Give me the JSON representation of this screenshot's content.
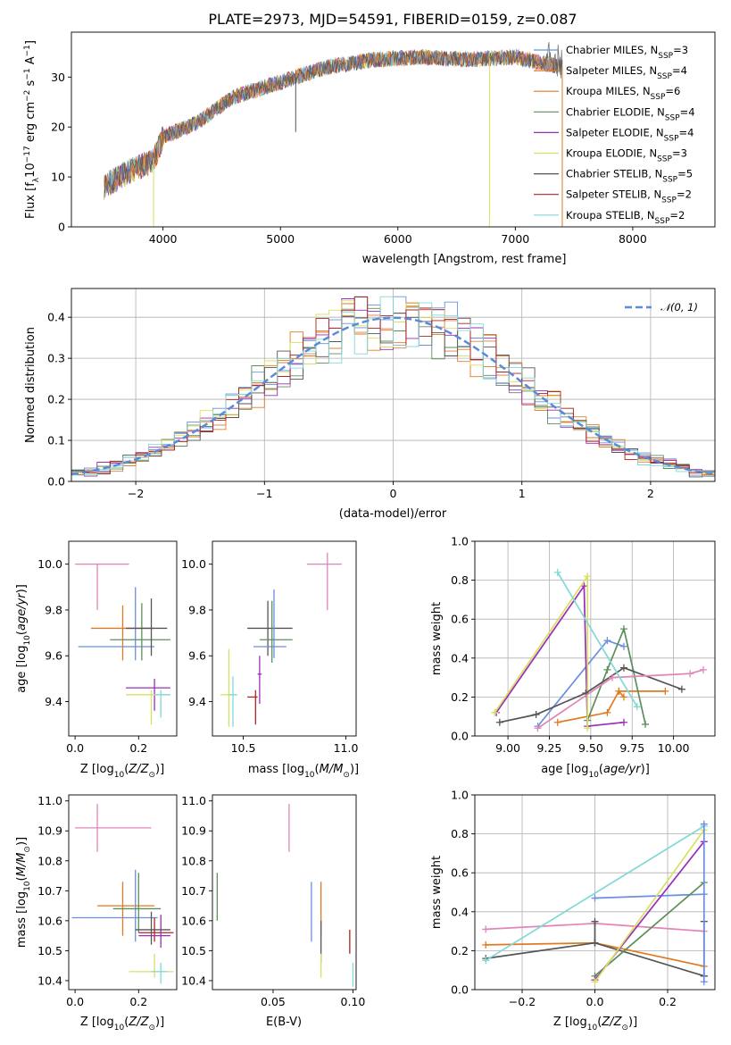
{
  "page": {
    "title": "PLATE=2973, MJD=54591, FIBERID=0159, z=0.087"
  },
  "colors": {
    "models": [
      "#6a8fdf",
      "#df7f3c",
      "#e07a20",
      "#5c8f5c",
      "#9b2db8",
      "#d8e060",
      "#555555",
      "#b22222",
      "#80d8d8"
    ],
    "fit": {
      "chabrier_miles": "#6a8fdf",
      "salpeter_miles": "#e07a20",
      "kroupa_miles": "#e07a20",
      "chabrier_elodie": "#5c8f5c",
      "salpeter_elodie": "#9b2db8",
      "kroupa_elodie": "#d8e060",
      "chabrier_stelib": "#555555",
      "salpeter_stelib": "#b22222",
      "kroupa_stelib": "#80d8d8",
      "pink": "#e085b8",
      "normal": "#5a8ad8"
    }
  },
  "chart_data": [
    {
      "id": "spectrum",
      "type": "line",
      "xlabel": "wavelength [Angstrom, rest frame]",
      "ylabel": "Flux [f_λ10^-17 erg cm^-2 s^-1 A^-1]",
      "ylabel_parts": {
        "main": "Flux [f",
        "sub1": "λ",
        "mid": "10",
        "sup1": "−17",
        "rest": " erg cm",
        "sup2": "−2",
        "rest2": " s",
        "sup3": "−1",
        "rest3": " A",
        "sup4": "−1",
        "end": "]"
      },
      "xlim": [
        3220,
        8700
      ],
      "ylim": [
        0,
        39
      ],
      "xticks": [
        4000,
        5000,
        6000,
        7000,
        8000
      ],
      "yticks": [
        0,
        10,
        20,
        30
      ],
      "legend_position": "upper right",
      "legend": [
        {
          "label": "Chabrier MILES, N",
          "sub": "SSP",
          "suffix": "=3",
          "color": "#6a8fdf"
        },
        {
          "label": "Salpeter MILES, N",
          "sub": "SSP",
          "suffix": "=4",
          "color": "#e07a20"
        },
        {
          "label": "Kroupa MILES, N",
          "sub": "SSP",
          "suffix": "=6",
          "color": "#e07a20"
        },
        {
          "label": "Chabrier ELODIE, N",
          "sub": "SSP",
          "suffix": "=4",
          "color": "#5c8f5c"
        },
        {
          "label": "Salpeter ELODIE, N",
          "sub": "SSP",
          "suffix": "=4",
          "color": "#9b2db8"
        },
        {
          "label": "Kroupa ELODIE, N",
          "sub": "SSP",
          "suffix": "=3",
          "color": "#d8e060"
        },
        {
          "label": "Chabrier STELIB, N",
          "sub": "SSP",
          "suffix": "=5",
          "color": "#555555"
        },
        {
          "label": "Salpeter STELIB, N",
          "sub": "SSP",
          "suffix": "=2",
          "color": "#b22222"
        },
        {
          "label": "Kroupa STELIB, N",
          "sub": "SSP",
          "suffix": "=2",
          "color": "#80d8d8"
        }
      ],
      "continuum": [
        [
          3500,
          8
        ],
        [
          3700,
          11
        ],
        [
          3900,
          13
        ],
        [
          3950,
          15
        ],
        [
          4000,
          18
        ],
        [
          4300,
          21
        ],
        [
          4600,
          26
        ],
        [
          5000,
          29
        ],
        [
          5400,
          32
        ],
        [
          5800,
          33.5
        ],
        [
          6200,
          34
        ],
        [
          6600,
          33.5
        ],
        [
          7000,
          34
        ],
        [
          7200,
          33
        ],
        [
          7400,
          32
        ]
      ],
      "spikes": [
        {
          "x": 3920,
          "y": 0,
          "color": "#d8e060"
        },
        {
          "x": 5130,
          "y": 19,
          "color": "#555555"
        },
        {
          "x": 6780,
          "y": 0,
          "color": "#d8e060"
        },
        {
          "x": 7400,
          "y": 0,
          "color": "#e07a20"
        }
      ]
    },
    {
      "id": "residuals",
      "type": "step",
      "xlabel": "(data-model)/error",
      "ylabel": "Normed distribution",
      "xlim": [
        -2.5,
        2.5
      ],
      "ylim": [
        0,
        0.47
      ],
      "xticks": [
        -2,
        -1,
        0,
        1,
        2
      ],
      "yticks": [
        0.0,
        0.1,
        0.2,
        0.3,
        0.4
      ],
      "legend": "𝒩(0, 1)",
      "legend_position": "upper right",
      "normal": {
        "mu": 0,
        "sigma": 1
      },
      "bin_width": 0.1
    },
    {
      "id": "age_vs_Z",
      "type": "errorbar",
      "xlabel": "Z [log10(Z/Z⊙)]",
      "ylabel": "age [log10(age/yr)]",
      "xlim": [
        -0.02,
        0.32
      ],
      "ylim": [
        9.25,
        10.1
      ],
      "xticks": [
        0.0,
        0.2
      ],
      "yticks": [
        9.4,
        9.6,
        9.8,
        10.0
      ],
      "points": [
        {
          "x": 0.07,
          "y": 10.0,
          "xerr": [
            0.07,
            0.1
          ],
          "yerr": [
            0.2,
            0.0
          ],
          "color": "#e085b8"
        },
        {
          "x": 0.15,
          "y": 9.72,
          "xerr": [
            0.1,
            0.1
          ],
          "yerr": [
            0.14,
            0.1
          ],
          "color": "#e07a20"
        },
        {
          "x": 0.19,
          "y": 9.64,
          "xerr": [
            0.18,
            0.06
          ],
          "yerr": [
            0.06,
            0.26
          ],
          "color": "#6a8fdf"
        },
        {
          "x": 0.21,
          "y": 9.67,
          "xerr": [
            0.1,
            0.09
          ],
          "yerr": [
            0.09,
            0.16
          ],
          "color": "#5c8f5c"
        },
        {
          "x": 0.24,
          "y": 9.72,
          "xerr": [
            0.08,
            0.05
          ],
          "yerr": [
            0.12,
            0.13
          ],
          "color": "#555555"
        },
        {
          "x": 0.25,
          "y": 9.46,
          "xerr": [
            0.09,
            0.05
          ],
          "yerr": [
            0.1,
            0.04
          ],
          "color": "#9b2db8"
        },
        {
          "x": 0.24,
          "y": 9.43,
          "xerr": [
            0.08,
            0.06
          ],
          "yerr": [
            0.13,
            0.02
          ],
          "color": "#d8e060"
        },
        {
          "x": 0.27,
          "y": 9.43,
          "xerr": [
            0.02,
            0.03
          ],
          "yerr": [
            0.1,
            0.02
          ],
          "color": "#80d8d8"
        }
      ]
    },
    {
      "id": "age_vs_mass",
      "type": "errorbar",
      "xlabel": "mass [log10(M/M⊙)]",
      "ylabel": "",
      "xlim": [
        10.35,
        11.05
      ],
      "ylim": [
        9.25,
        10.1
      ],
      "xticks": [
        10.5,
        11.0
      ],
      "yticks": [
        9.4,
        9.6,
        9.8,
        10.0
      ],
      "points": [
        {
          "x": 10.91,
          "y": 10.0,
          "xerr": [
            0.1,
            0.07
          ],
          "yerr": [
            0.2,
            0.05
          ],
          "color": "#e085b8"
        },
        {
          "x": 10.62,
          "y": 9.72,
          "xerr": [
            0.1,
            0.12
          ],
          "yerr": [
            0.12,
            0.12
          ],
          "color": "#555555"
        },
        {
          "x": 10.65,
          "y": 9.64,
          "xerr": [
            0.1,
            0.06
          ],
          "yerr": [
            0.05,
            0.25
          ],
          "color": "#6a8fdf"
        },
        {
          "x": 10.64,
          "y": 9.67,
          "xerr": [
            0.06,
            0.1
          ],
          "yerr": [
            0.1,
            0.17
          ],
          "color": "#5c8f5c"
        },
        {
          "x": 10.58,
          "y": 9.52,
          "xerr": [
            0.01,
            0.01
          ],
          "yerr": [
            0.13,
            0.08
          ],
          "color": "#9b2db8"
        },
        {
          "x": 10.43,
          "y": 9.43,
          "xerr": [
            0.04,
            0.04
          ],
          "yerr": [
            0.14,
            0.2
          ],
          "color": "#d8e060"
        },
        {
          "x": 10.56,
          "y": 9.42,
          "xerr": [
            0.04,
            0.01
          ],
          "yerr": [
            0.12,
            0.03
          ],
          "color": "#b22222"
        },
        {
          "x": 10.45,
          "y": 9.43,
          "xerr": [
            0.02,
            0.02
          ],
          "yerr": [
            0.14,
            0.08
          ],
          "color": "#80d8d8"
        }
      ]
    },
    {
      "id": "mass_weight_vs_age",
      "type": "line",
      "xlabel": "age [log10(age/yr)]",
      "ylabel": "mass weight",
      "xlim": [
        8.8,
        10.25
      ],
      "ylim": [
        0.0,
        1.0
      ],
      "xticks": [
        9.0,
        9.25,
        9.5,
        9.75,
        10.0
      ],
      "yticks": [
        0.0,
        0.2,
        0.4,
        0.6,
        0.8,
        1.0
      ],
      "series": [
        {
          "color": "#6a8fdf",
          "x": [
            9.18,
            9.6,
            9.7
          ],
          "y": [
            0.05,
            0.49,
            0.46
          ]
        },
        {
          "color": "#e07a20",
          "x": [
            9.3,
            9.6,
            9.67,
            9.95
          ],
          "y": [
            0.07,
            0.12,
            0.23,
            0.23
          ]
        },
        {
          "color": "#e07a20",
          "x": [
            9.67,
            9.7
          ],
          "y": [
            0.23,
            0.2
          ]
        },
        {
          "color": "#5c8f5c",
          "x": [
            9.48,
            9.6,
            9.7,
            9.83
          ],
          "y": [
            0.08,
            0.34,
            0.55,
            0.06
          ]
        },
        {
          "color": "#9b2db8",
          "x": [
            8.93,
            9.46,
            9.48,
            9.7
          ],
          "y": [
            0.12,
            0.77,
            0.05,
            0.07
          ]
        },
        {
          "color": "#d8e060",
          "x": [
            8.92,
            9.48,
            9.48
          ],
          "y": [
            0.12,
            0.82,
            0.04
          ]
        },
        {
          "color": "#555555",
          "x": [
            8.95,
            9.17,
            9.47,
            9.7,
            10.05
          ],
          "y": [
            0.07,
            0.11,
            0.22,
            0.35,
            0.24
          ]
        },
        {
          "color": "#e085b8",
          "x": [
            9.18,
            9.63,
            10.1,
            10.18
          ],
          "y": [
            0.04,
            0.3,
            0.32,
            0.34
          ]
        },
        {
          "color": "#80d8d8",
          "x": [
            9.3,
            9.78
          ],
          "y": [
            0.84,
            0.15
          ]
        }
      ]
    },
    {
      "id": "mass_vs_Z",
      "type": "errorbar",
      "xlabel": "Z [log10(Z/Z⊙)]",
      "ylabel": "mass [log10(M/M⊙)]",
      "xlim": [
        -0.02,
        0.32
      ],
      "ylim": [
        10.37,
        11.02
      ],
      "xticks": [
        0.0,
        0.2
      ],
      "yticks": [
        10.4,
        10.5,
        10.6,
        10.7,
        10.8,
        10.9,
        11.0
      ],
      "points": [
        {
          "x": 0.07,
          "y": 10.91,
          "xerr": [
            0.07,
            0.17
          ],
          "yerr": [
            0.08,
            0.08
          ],
          "color": "#e085b8"
        },
        {
          "x": 0.15,
          "y": 10.65,
          "xerr": [
            0.08,
            0.1
          ],
          "yerr": [
            0.1,
            0.08
          ],
          "color": "#e07a20"
        },
        {
          "x": 0.19,
          "y": 10.61,
          "xerr": [
            0.2,
            0.07
          ],
          "yerr": [
            0.08,
            0.16
          ],
          "color": "#6a8fdf"
        },
        {
          "x": 0.2,
          "y": 10.64,
          "xerr": [
            0.08,
            0.07
          ],
          "yerr": [
            0.08,
            0.12
          ],
          "color": "#5c8f5c"
        },
        {
          "x": 0.25,
          "y": 10.56,
          "xerr": [
            0.05,
            0.06
          ],
          "yerr": [
            0.03,
            0.05
          ],
          "color": "#b22222"
        },
        {
          "x": 0.27,
          "y": 10.55,
          "xerr": [
            0.07,
            0.03
          ],
          "yerr": [
            0.04,
            0.07
          ],
          "color": "#9b2db8"
        },
        {
          "x": 0.24,
          "y": 10.57,
          "xerr": [
            0.05,
            0.06
          ],
          "yerr": [
            0.05,
            0.06
          ],
          "color": "#555555"
        },
        {
          "x": 0.25,
          "y": 10.43,
          "xerr": [
            0.08,
            0.06
          ],
          "yerr": [
            0.02,
            0.06
          ],
          "color": "#d8e060"
        },
        {
          "x": 0.27,
          "y": 10.43,
          "xerr": [
            0.03,
            0.02
          ],
          "yerr": [
            0.04,
            0.03
          ],
          "color": "#80d8d8"
        }
      ]
    },
    {
      "id": "mass_vs_ebv",
      "type": "errorbar",
      "xlabel": "E(B-V)",
      "ylabel": "",
      "xlim": [
        0.012,
        0.102
      ],
      "ylim": [
        10.37,
        11.02
      ],
      "xticks": [
        0.05,
        0.1
      ],
      "yticks": [
        10.4,
        10.5,
        10.6,
        10.7,
        10.8,
        10.9,
        11.0
      ],
      "points": [
        {
          "x": 0.015,
          "y": 10.69,
          "xerr": [
            0,
            0
          ],
          "yerr": [
            0.09,
            0.07
          ],
          "color": "#5c8f5c"
        },
        {
          "x": 0.06,
          "y": 10.91,
          "xerr": [
            0,
            0
          ],
          "yerr": [
            0.08,
            0.08
          ],
          "color": "#e085b8"
        },
        {
          "x": 0.074,
          "y": 10.65,
          "xerr": [
            0,
            0
          ],
          "yerr": [
            0.12,
            0.08
          ],
          "color": "#6a8fdf"
        },
        {
          "x": 0.08,
          "y": 10.64,
          "xerr": [
            0,
            0
          ],
          "yerr": [
            0.09,
            0.09
          ],
          "color": "#e07a20"
        },
        {
          "x": 0.08,
          "y": 10.53,
          "xerr": [
            0,
            0
          ],
          "yerr": [
            0.07,
            0.07
          ],
          "color": "#555555"
        },
        {
          "x": 0.08,
          "y": 10.45,
          "xerr": [
            0,
            0
          ],
          "yerr": [
            0.04,
            0.04
          ],
          "color": "#d8e060"
        },
        {
          "x": 0.098,
          "y": 10.53,
          "xerr": [
            0,
            0
          ],
          "yerr": [
            0.04,
            0.04
          ],
          "color": "#b22222"
        },
        {
          "x": 0.1,
          "y": 10.42,
          "xerr": [
            0,
            0
          ],
          "yerr": [
            0.04,
            0.04
          ],
          "color": "#80d8d8"
        }
      ]
    },
    {
      "id": "mass_weight_vs_Z",
      "type": "line",
      "xlabel": "Z [log10(Z/Z⊙)]",
      "ylabel": "mass weight",
      "xlim": [
        -0.33,
        0.33
      ],
      "ylim": [
        0.0,
        1.0
      ],
      "xticks": [
        -0.2,
        0.0,
        0.2
      ],
      "yticks": [
        0.0,
        0.2,
        0.4,
        0.6,
        0.8,
        1.0
      ],
      "series": [
        {
          "color": "#6a8fdf",
          "x": [
            0.0,
            0.3
          ],
          "y": [
            0.47,
            0.49
          ]
        },
        {
          "color": "#e07a20",
          "x": [
            -0.3,
            0.0,
            0.3
          ],
          "y": [
            0.23,
            0.24,
            0.12
          ]
        },
        {
          "color": "#e085b8",
          "x": [
            -0.3,
            0.0,
            0.3
          ],
          "y": [
            0.31,
            0.34,
            0.3
          ]
        },
        {
          "color": "#555555",
          "x": [
            -0.3,
            0.0,
            0.3
          ],
          "y": [
            0.16,
            0.24,
            0.07
          ]
        },
        {
          "color": "#80d8d8",
          "x": [
            -0.3,
            0.3
          ],
          "y": [
            0.15,
            0.84
          ]
        },
        {
          "color": "#5c8f5c",
          "x": [
            0.0,
            0.3
          ],
          "y": [
            0.07,
            0.55
          ]
        },
        {
          "color": "#9b2db8",
          "x": [
            0.0,
            0.3
          ],
          "y": [
            0.05,
            0.76
          ]
        },
        {
          "color": "#d8e060",
          "x": [
            0.0,
            0.3
          ],
          "y": [
            0.04,
            0.82
          ]
        },
        {
          "color": "#555555",
          "x": [
            0.0,
            0.0
          ],
          "y": [
            0.35,
            0.24
          ]
        },
        {
          "color": "#555555",
          "x": [
            0.3,
            0.3
          ],
          "y": [
            0.35,
            0.07
          ]
        },
        {
          "color": "#6a8fdf",
          "x": [
            0.3,
            0.3
          ],
          "y": [
            0.85,
            0.04
          ]
        }
      ]
    }
  ]
}
